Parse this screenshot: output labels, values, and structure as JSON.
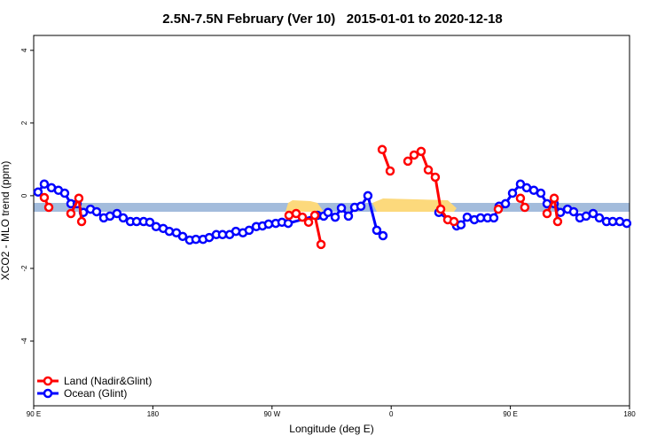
{
  "chart_data": {
    "type": "line",
    "title": "2.5N-7.5N February (Ver 10)   2015-01-01 to 2020-12-18",
    "xlabel": "Longitude (deg E)",
    "ylabel": "XCO2 - MLO trend (ppm)",
    "xlim": [
      90,
      540
    ],
    "ylim": [
      -5.78,
      4.41
    ],
    "xticks": [
      {
        "value": 90,
        "label": "90 E"
      },
      {
        "value": 180,
        "label": "180"
      },
      {
        "value": 270,
        "label": "90 W"
      },
      {
        "value": 360,
        "label": "0"
      },
      {
        "value": 450,
        "label": "90 E"
      },
      {
        "value": 540,
        "label": "180"
      }
    ],
    "yticks": [
      -4,
      -2,
      0,
      2,
      4
    ],
    "legend": "bottom-left",
    "series": [
      {
        "name": "Land (Nadir&Glint)",
        "color": "#ff0000",
        "x": [
          98.0,
          101.4,
          null,
          118.1,
          124.1,
          126.2,
          null,
          282.8,
          288.2,
          292.9,
          297.6,
          302.3,
          307.0,
          null,
          353.2,
          359.2,
          null,
          372.6,
          377.3,
          382.6,
          388.0,
          393.3,
          397.4,
          402.7,
          407.4,
          null,
          440.9,
          null,
          457.6,
          460.9,
          null,
          477.7,
          483.1,
          485.7
        ],
        "values": [
          -0.05,
          -0.32,
          null,
          -0.49,
          -0.07,
          -0.71,
          null,
          -0.54,
          -0.49,
          -0.59,
          -0.73,
          -0.54,
          -1.34,
          null,
          1.27,
          0.68,
          null,
          0.95,
          1.12,
          1.22,
          0.71,
          0.51,
          -0.37,
          -0.66,
          -0.71,
          null,
          -0.37,
          null,
          -0.07,
          -0.32,
          null,
          -0.49,
          -0.07,
          -0.71
        ]
      },
      {
        "name": "Ocean (Glint)",
        "color": "#0000ff",
        "x": [
          93.3,
          98.0,
          103.4,
          108.7,
          113.4,
          118.1,
          122.8,
          127.5,
          132.9,
          137.5,
          142.9,
          147.6,
          152.9,
          157.6,
          163.0,
          167.7,
          173.0,
          177.7,
          182.4,
          187.8,
          192.4,
          197.8,
          202.5,
          207.8,
          212.5,
          217.9,
          222.6,
          227.9,
          232.6,
          238.0,
          242.7,
          248.0,
          252.7,
          258.1,
          262.8,
          267.4,
          272.8,
          277.5,
          282.2,
          304.3,
          309.0,
          312.3,
          317.7,
          322.4,
          327.7,
          332.4,
          337.1,
          342.4,
          349.1,
          353.8,
          null,
          396.0,
          409.4,
          412.7,
          417.4,
          422.8,
          427.5,
          432.8,
          437.5,
          441.5,
          446.3,
          451.6,
          457.6,
          462.3,
          467.7,
          473.0,
          477.7,
          483.1,
          487.8,
          493.2,
          497.8,
          502.5,
          507.2,
          512.5,
          517.2,
          522.6,
          527.3,
          532.6,
          537.9
        ],
        "values": [
          0.1,
          0.32,
          0.22,
          0.15,
          0.07,
          -0.22,
          -0.22,
          -0.46,
          -0.37,
          -0.44,
          -0.61,
          -0.56,
          -0.49,
          -0.61,
          -0.71,
          -0.71,
          -0.71,
          -0.73,
          -0.85,
          -0.9,
          -0.98,
          -1.02,
          -1.12,
          -1.22,
          -1.2,
          -1.2,
          -1.15,
          -1.07,
          -1.07,
          -1.07,
          -0.98,
          -1.02,
          -0.95,
          -0.85,
          -0.83,
          -0.78,
          -0.76,
          -0.73,
          -0.76,
          -0.54,
          -0.56,
          -0.46,
          -0.59,
          -0.34,
          -0.56,
          -0.32,
          -0.29,
          0.0,
          -0.95,
          -1.1,
          null,
          -0.46,
          -0.83,
          -0.8,
          -0.59,
          -0.66,
          -0.61,
          -0.61,
          -0.61,
          -0.29,
          -0.22,
          0.07,
          0.32,
          0.22,
          0.15,
          0.07,
          -0.22,
          -0.22,
          -0.46,
          -0.37,
          -0.44,
          -0.61,
          -0.56,
          -0.49,
          -0.61,
          -0.71,
          -0.71,
          -0.71,
          -0.76
        ]
      }
    ]
  }
}
